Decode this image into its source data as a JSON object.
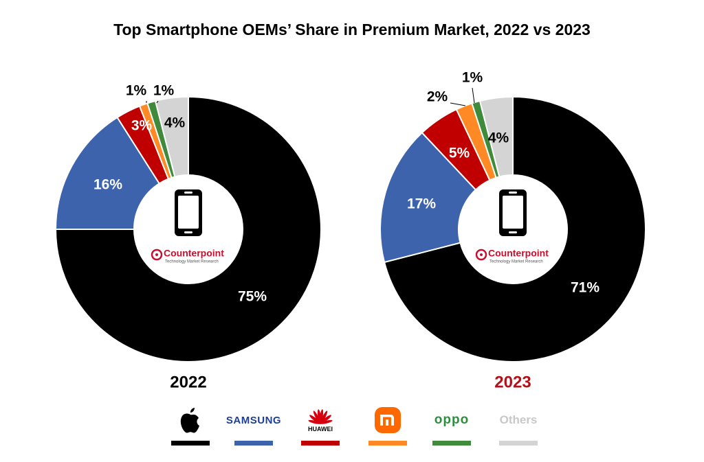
{
  "title": "Top Smartphone OEMs’ Share in Premium Market, 2022 vs 2023",
  "center_logo": {
    "name": "Counterpoint",
    "tagline": "Technology Market Research"
  },
  "chart_data": [
    {
      "type": "pie",
      "donut": true,
      "year_label": "2022",
      "year_label_color": "#000000",
      "slices": [
        {
          "brand": "apple",
          "value": 75,
          "label": "75%",
          "color": "#000000"
        },
        {
          "brand": "samsung",
          "value": 16,
          "label": "16%",
          "color": "#3e63ad"
        },
        {
          "brand": "huawei",
          "value": 3,
          "label": "3%",
          "color": "#c00000"
        },
        {
          "brand": "xiaomi",
          "value": 1,
          "label": "1%",
          "color": "#ff8a25"
        },
        {
          "brand": "oppo",
          "value": 1,
          "label": "1%",
          "color": "#3f8a3b"
        },
        {
          "brand": "others",
          "value": 4,
          "label": "4%",
          "color": "#d4d4d4"
        }
      ]
    },
    {
      "type": "pie",
      "donut": true,
      "year_label": "2023",
      "year_label_color": "#b0111a",
      "slices": [
        {
          "brand": "apple",
          "value": 71,
          "label": "71%",
          "color": "#000000"
        },
        {
          "brand": "samsung",
          "value": 17,
          "label": "17%",
          "color": "#3e63ad"
        },
        {
          "brand": "huawei",
          "value": 5,
          "label": "5%",
          "color": "#c00000"
        },
        {
          "brand": "xiaomi",
          "value": 2,
          "label": "2%",
          "color": "#ff8a25"
        },
        {
          "brand": "oppo",
          "value": 1,
          "label": "1%",
          "color": "#3f8a3b"
        },
        {
          "brand": "others",
          "value": 4,
          "label": "4%",
          "color": "#d4d4d4"
        }
      ]
    }
  ],
  "legend": [
    {
      "brand": "apple",
      "logo": "apple-logo",
      "text": "",
      "color": "#000000"
    },
    {
      "brand": "samsung",
      "logo": "samsung-logo",
      "text": "SAMSUNG",
      "color": "#3e63ad"
    },
    {
      "brand": "huawei",
      "logo": "huawei-logo",
      "text": "HUAWEI",
      "color": "#c00000"
    },
    {
      "brand": "xiaomi",
      "logo": "xiaomi-logo",
      "text": "mi",
      "color": "#ff8a25"
    },
    {
      "brand": "oppo",
      "logo": "oppo-logo",
      "text": "oppo",
      "color": "#3f8a3b"
    },
    {
      "brand": "others",
      "logo": "",
      "text": "Others",
      "color": "#d4d4d4"
    }
  ]
}
